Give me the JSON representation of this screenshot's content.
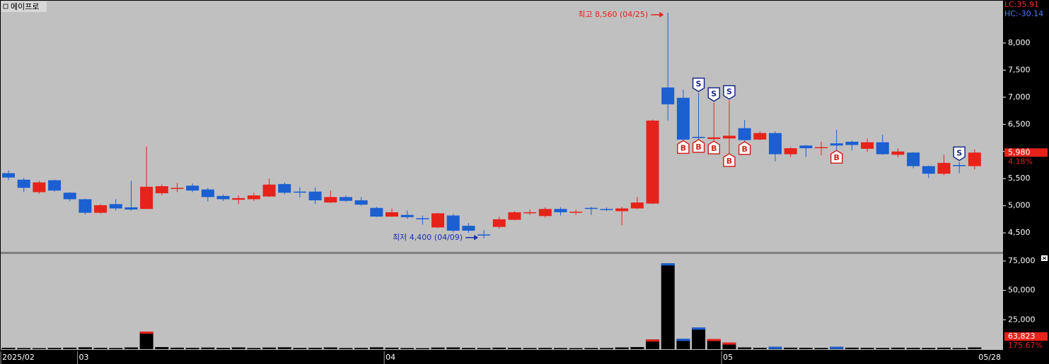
{
  "title": "에이프로",
  "indicators": {
    "lc": "LC:35.91",
    "hc": "HC:-30.14"
  },
  "chart_data": [
    {
      "type": "candlestick",
      "categories": [
        "2025/02",
        null,
        null,
        null,
        null,
        "03",
        null,
        null,
        null,
        null,
        null,
        null,
        null,
        null,
        null,
        null,
        null,
        null,
        null,
        null,
        null,
        null,
        null,
        null,
        null,
        "04",
        null,
        null,
        null,
        null,
        null,
        null,
        null,
        null,
        null,
        null,
        null,
        null,
        null,
        null,
        null,
        null,
        null,
        null,
        null,
        null,
        null,
        "05",
        null,
        null,
        null,
        null,
        null,
        null,
        null,
        null,
        null,
        null,
        null,
        null,
        null,
        null,
        null,
        "05/28"
      ],
      "open": [
        5600,
        5480,
        5250,
        5470,
        5240,
        5120,
        4870,
        5030,
        4970,
        4940,
        5230,
        5320,
        5370,
        5300,
        5180,
        5110,
        5120,
        5170,
        5400,
        5260,
        5260,
        5060,
        5160,
        5100,
        4960,
        4800,
        4830,
        4770,
        4600,
        4820,
        4630,
        4470,
        4610,
        4740,
        4870,
        4810,
        4940,
        4880,
        4960,
        4940,
        4900,
        4950,
        5040,
        7180,
        6990,
        6270,
        6230,
        6240,
        6430,
        6220,
        6340,
        5950,
        6110,
        6070,
        6150,
        6180,
        6050,
        6170,
        5940,
        5980,
        5730,
        5590,
        5750,
        5730
      ],
      "high": [
        5650,
        5510,
        5460,
        5480,
        5250,
        5130,
        5030,
        5120,
        5460,
        6090,
        5390,
        5420,
        5410,
        5330,
        5210,
        5190,
        5240,
        5500,
        5430,
        5340,
        5340,
        5280,
        5190,
        5160,
        4980,
        4950,
        4910,
        4820,
        4870,
        4850,
        4680,
        4550,
        4800,
        4900,
        4930,
        4970,
        4970,
        4930,
        4980,
        4970,
        4980,
        5160,
        6590,
        8560,
        7140,
        7080,
        6900,
        6940,
        6580,
        6370,
        6370,
        6080,
        6120,
        6180,
        6400,
        6200,
        6240,
        6310,
        6060,
        5990,
        5740,
        5940,
        5810,
        6040
      ],
      "low": [
        5470,
        5250,
        5220,
        5260,
        5080,
        4840,
        4850,
        4910,
        4910,
        4940,
        5190,
        5250,
        5250,
        5080,
        5090,
        5030,
        5090,
        5160,
        5210,
        5150,
        5030,
        5050,
        5070,
        5000,
        4790,
        4790,
        4760,
        4650,
        4590,
        4510,
        4500,
        4400,
        4580,
        4730,
        4830,
        4780,
        4820,
        4830,
        4830,
        4900,
        4640,
        4940,
        5030,
        6570,
        6200,
        6220,
        6190,
        5960,
        6180,
        6210,
        5820,
        5900,
        5900,
        5930,
        6020,
        6020,
        5990,
        5940,
        5890,
        5690,
        5510,
        5560,
        5600,
        5670
      ],
      "close": [
        5520,
        5330,
        5430,
        5280,
        5120,
        4870,
        5010,
        4950,
        4930,
        5350,
        5360,
        5330,
        5280,
        5160,
        5120,
        5140,
        5190,
        5390,
        5240,
        5250,
        5100,
        5160,
        5090,
        5020,
        4800,
        4880,
        4790,
        4760,
        4860,
        4540,
        4540,
        4460,
        4750,
        4880,
        4880,
        4940,
        4880,
        4890,
        4950,
        4930,
        4950,
        5060,
        6570,
        6870,
        6220,
        6250,
        6260,
        6290,
        6210,
        6340,
        5950,
        6060,
        6060,
        6080,
        6110,
        6120,
        6170,
        5950,
        6000,
        5730,
        5590,
        5790,
        5740,
        5980
      ],
      "sell_signals": [
        null,
        null,
        null,
        null,
        null,
        null,
        null,
        null,
        null,
        null,
        null,
        null,
        null,
        null,
        null,
        null,
        null,
        null,
        null,
        null,
        null,
        null,
        null,
        null,
        null,
        null,
        null,
        null,
        null,
        null,
        null,
        null,
        null,
        null,
        null,
        null,
        null,
        null,
        null,
        null,
        null,
        null,
        null,
        null,
        null,
        "S",
        "S",
        "S",
        null,
        null,
        null,
        null,
        null,
        null,
        null,
        null,
        null,
        null,
        null,
        null,
        null,
        null,
        "S",
        null
      ],
      "buy_signals": [
        null,
        null,
        null,
        null,
        null,
        null,
        null,
        null,
        null,
        null,
        null,
        null,
        null,
        null,
        null,
        null,
        null,
        null,
        null,
        null,
        null,
        null,
        null,
        null,
        null,
        null,
        null,
        null,
        null,
        null,
        null,
        null,
        null,
        null,
        null,
        null,
        null,
        null,
        null,
        null,
        null,
        null,
        null,
        null,
        "B",
        "B",
        "B",
        "B",
        "B",
        null,
        null,
        null,
        null,
        null,
        "B",
        null,
        null,
        null,
        null,
        null,
        null,
        null,
        null,
        null
      ],
      "up_color": "#e5231b",
      "down_color": "#1b5fd1",
      "annotations": {
        "high": "최고 8,560 (04/25)",
        "low": "최저 4,400 (04/09)"
      },
      "price_tag": [
        "5,980",
        "4.18%"
      ],
      "ylim": [
        4150,
        8780
      ],
      "yticks": [
        {
          "value": 4500,
          "label": "4,500"
        },
        {
          "value": 5000,
          "label": "5,000"
        },
        {
          "value": 5500,
          "label": "5,500"
        },
        {
          "value": 6000,
          "label": "6,000"
        },
        {
          "value": 6500,
          "label": "6,500"
        },
        {
          "value": 7000,
          "label": "7,000"
        },
        {
          "value": 7500,
          "label": "7,500"
        },
        {
          "value": 8000,
          "label": "8,000"
        }
      ]
    },
    {
      "type": "bar",
      "values": [
        1200,
        1000,
        900,
        1100,
        1300,
        1600,
        1200,
        1000,
        1500,
        15000,
        1800,
        1300,
        1200,
        1400,
        1100,
        1500,
        1000,
        1400,
        1600,
        1100,
        1200,
        1500,
        1000,
        1100,
        1600,
        1300,
        1000,
        900,
        1400,
        1500,
        1100,
        1000,
        1300,
        1200,
        1000,
        1100,
        1000,
        900,
        1000,
        1000,
        1500,
        1800,
        8300,
        73000,
        8800,
        18400,
        8700,
        5700,
        1500,
        1200,
        2000,
        1300,
        1200,
        1100,
        2000,
        1300,
        1200,
        1100,
        1300,
        1200,
        1100,
        1300,
        1000,
        1500
      ],
      "color": "#000000",
      "volume_tag": [
        "63,823",
        "175.67%"
      ],
      "ylim": [
        0,
        81000
      ],
      "yticks": [
        {
          "value": 25000,
          "label": "25,000"
        },
        {
          "value": 50000,
          "label": "50,000"
        },
        {
          "value": 75000,
          "label": "75,000"
        }
      ]
    }
  ]
}
